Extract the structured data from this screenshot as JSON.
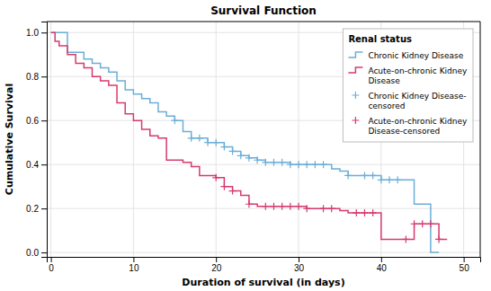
{
  "chart_data": {
    "type": "line",
    "title": "Survival Function",
    "xlabel": "Duration of survival (in days)",
    "ylabel": "Cumulative Survival",
    "legend_title": "Renal status",
    "xlim": [
      -0.5,
      52
    ],
    "ylim": [
      -0.02,
      1.05
    ],
    "xticks": [
      0,
      10,
      20,
      30,
      40,
      50
    ],
    "yticks": [
      {
        "value": 0.0,
        "label": "0.0"
      },
      0.2,
      0.4,
      0.6,
      0.8,
      {
        "value": 1.0,
        "label": "1.0"
      }
    ],
    "grid": true,
    "legend": "upper right",
    "series": [
      {
        "name": "Chronic Kidney Disease",
        "type": "step",
        "color": "#6baed6",
        "line_style": "solid",
        "x": [
          0,
          1,
          2,
          3,
          4,
          5,
          6,
          7,
          8,
          9,
          10,
          11,
          12,
          13,
          14,
          15,
          16,
          17,
          18,
          19,
          20,
          21,
          22,
          23,
          24,
          25,
          26,
          27,
          28,
          29,
          30,
          31,
          32,
          33,
          34,
          35,
          36,
          37,
          38,
          39,
          40,
          41,
          42,
          43,
          44,
          45,
          46,
          47
        ],
        "values": [
          1.0,
          1.0,
          0.91,
          0.91,
          0.88,
          0.86,
          0.84,
          0.82,
          0.78,
          0.74,
          0.72,
          0.7,
          0.68,
          0.64,
          0.62,
          0.6,
          0.55,
          0.52,
          0.52,
          0.5,
          0.5,
          0.48,
          0.46,
          0.44,
          0.43,
          0.42,
          0.41,
          0.41,
          0.41,
          0.4,
          0.4,
          0.4,
          0.4,
          0.4,
          0.38,
          0.37,
          0.35,
          0.35,
          0.35,
          0.35,
          0.33,
          0.33,
          0.33,
          0.33,
          0.22,
          0.22,
          0.0,
          0.0
        ]
      },
      {
        "name": "Acute-on-chronic Kidney\nDisease",
        "type": "step",
        "color": "#d63b6e",
        "line_style": "solid",
        "x": [
          0,
          0.5,
          1,
          2,
          3,
          4,
          5,
          6,
          7,
          8,
          9,
          10,
          11,
          12,
          13,
          14,
          15,
          16,
          17,
          18,
          19,
          20,
          21,
          22,
          23,
          24,
          25,
          26,
          27,
          28,
          29,
          30,
          31,
          32,
          33,
          34,
          35,
          36,
          37,
          38,
          39,
          40,
          41,
          42,
          43,
          44,
          45,
          46,
          47,
          48
        ],
        "values": [
          1.0,
          0.96,
          0.94,
          0.9,
          0.86,
          0.84,
          0.8,
          0.78,
          0.76,
          0.68,
          0.63,
          0.6,
          0.56,
          0.53,
          0.52,
          0.42,
          0.42,
          0.41,
          0.39,
          0.35,
          0.35,
          0.34,
          0.3,
          0.28,
          0.26,
          0.22,
          0.21,
          0.21,
          0.21,
          0.21,
          0.21,
          0.21,
          0.2,
          0.2,
          0.2,
          0.2,
          0.19,
          0.18,
          0.18,
          0.18,
          0.18,
          0.06,
          0.06,
          0.06,
          0.06,
          0.13,
          0.13,
          0.13,
          0.06,
          0.06
        ]
      },
      {
        "name": "Chronic Kidney Disease-\ncensored",
        "type": "scatter",
        "color": "#6baed6",
        "marker": "plus",
        "x": [
          15,
          17,
          18,
          19,
          20,
          21,
          22,
          23,
          24,
          25,
          26,
          27,
          28,
          29,
          30,
          31,
          32,
          33,
          36,
          38,
          39,
          40,
          41,
          42
        ],
        "values": [
          0.6,
          0.52,
          0.52,
          0.5,
          0.5,
          0.48,
          0.46,
          0.44,
          0.43,
          0.42,
          0.41,
          0.41,
          0.41,
          0.4,
          0.4,
          0.4,
          0.4,
          0.4,
          0.35,
          0.35,
          0.35,
          0.33,
          0.33,
          0.33
        ]
      },
      {
        "name": "Acute-on-chronic Kidney\nDisease-censored",
        "type": "scatter",
        "color": "#d63b6e",
        "marker": "plus",
        "x": [
          20,
          21,
          22,
          24,
          26,
          27,
          28,
          29,
          30,
          31,
          33,
          34,
          37,
          38,
          39,
          43,
          44,
          45,
          46,
          47
        ],
        "values": [
          0.34,
          0.3,
          0.28,
          0.22,
          0.21,
          0.21,
          0.21,
          0.21,
          0.21,
          0.2,
          0.2,
          0.2,
          0.18,
          0.18,
          0.18,
          0.06,
          0.13,
          0.13,
          0.13,
          0.06
        ]
      }
    ]
  }
}
